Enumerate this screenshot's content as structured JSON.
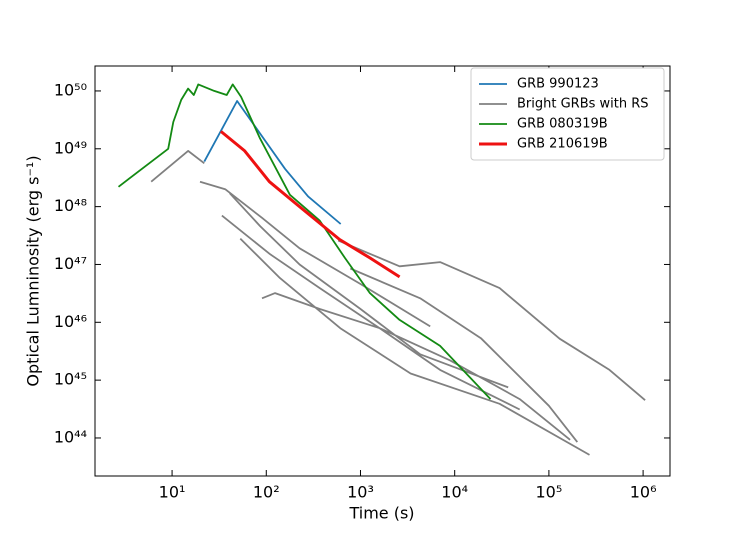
{
  "chart_data": {
    "type": "line",
    "xlabel": "Time (s)",
    "ylabel": "Optical Lumninosity (erg s⁻¹)",
    "xscale": "log",
    "yscale": "log",
    "legend": "upper right",
    "xlim": [
      1.52,
      1930000
    ],
    "ylim": [
      2.2e+43,
      2.7e+50
    ],
    "xticks": [
      {
        "value": 10,
        "label": "10¹"
      },
      {
        "value": 100,
        "label": "10²"
      },
      {
        "value": 1000,
        "label": "10³"
      },
      {
        "value": 10000,
        "label": "10⁴"
      },
      {
        "value": 100000,
        "label": "10⁵"
      },
      {
        "value": 1000000,
        "label": "10⁶"
      }
    ],
    "yticks": [
      {
        "value": 1e+44,
        "label": "10⁴⁴"
      },
      {
        "value": 1e+45,
        "label": "10⁴⁵"
      },
      {
        "value": 1e+46,
        "label": "10⁴⁶"
      },
      {
        "value": 1e+47,
        "label": "10⁴⁷"
      },
      {
        "value": 1e+48,
        "label": "10⁴⁸"
      },
      {
        "value": 1e+49,
        "label": "10⁴⁹"
      },
      {
        "value": 1e+50,
        "label": "10⁵⁰"
      }
    ],
    "series": [
      {
        "name": "GRB 990123",
        "color": "#1f77b4",
        "width": 1.8,
        "x": [
          22,
          49,
          158,
          278,
          617
        ],
        "values": [
          6e+48,
          6.7e+49,
          4.5e+48,
          1.5e+48,
          5e+47
        ]
      },
      {
        "name": "Bright GRBs with RS",
        "color": "#808080",
        "width": 1.8,
        "x": [
          6.0,
          14.8,
          22,
          null,
          19.8,
          36.6,
          90,
          226,
          1000,
          5500,
          null,
          33.8,
          110,
          370,
          1600,
          8900,
          49000,
          168000,
          null,
          580,
          2600,
          7000,
          30000,
          130000,
          440000,
          1050000,
          null,
          90,
          124,
          370,
          1600,
          7000,
          49000,
          null,
          53,
          140,
          610,
          3400,
          30000,
          270000,
          null,
          41,
          86,
          226,
          1000,
          4300,
          37000,
          null,
          780,
          4300,
          19000,
          100000,
          200000
        ],
        "values": [
          2.7e+48,
          9.2e+48,
          5.6e+48,
          null,
          2.7e+48,
          2e+48,
          6.4e+47,
          1.9e+47,
          4.6e+46,
          8.5e+45,
          null,
          7e+47,
          1.5e+47,
          3.9e+46,
          7.9e+45,
          2.2e+45,
          4.7e+44,
          9.3e+43,
          null,
          2.6e+47,
          9.3e+46,
          1.1e+47,
          3.9e+46,
          5.2e+45,
          1.5e+45,
          4.5e+44,
          null,
          2.6e+46,
          3.2e+46,
          1.7e+46,
          7.9e+45,
          1.5e+45,
          3.1e+44,
          null,
          2.8e+47,
          5.8e+46,
          7.9e+45,
          1.3e+45,
          3.9e+44,
          5.1e+43,
          null,
          1.7e+48,
          4.6e+47,
          1e+47,
          1.7e+46,
          2.8e+45,
          7.5e+44,
          null,
          8.5e+46,
          2.6e+46,
          5.3e+45,
          3.6e+44,
          8.5e+43
        ]
      },
      {
        "name": "GRB 080319B",
        "color": "#138a13",
        "width": 1.8,
        "x": [
          2.7,
          9.1,
          10.3,
          12.5,
          14.8,
          17,
          19,
          28,
          38,
          44,
          54,
          86,
          178,
          370,
          683,
          1260,
          2600,
          7000,
          24000
        ],
        "values": [
          2.2e+48,
          1e+49,
          2.9e+49,
          7e+49,
          1.1e+50,
          8.5e+49,
          1.3e+50,
          1e+50,
          8.5e+49,
          1.3e+50,
          7.9e+49,
          1.5e+49,
          1.6e+48,
          5.7e+47,
          1.3e+47,
          3.2e+46,
          1.1e+46,
          3.9e+45,
          4.7e+44
        ]
      },
      {
        "name": "GRB 210619B",
        "color": "#ee1111",
        "width": 3,
        "x": [
          33,
          59,
          108,
          225,
          600,
          1260,
          2600
        ],
        "values": [
          2e+49,
          9.2e+48,
          2.7e+48,
          1e+48,
          2.7e+47,
          1.3e+47,
          6.1e+46
        ]
      }
    ]
  }
}
